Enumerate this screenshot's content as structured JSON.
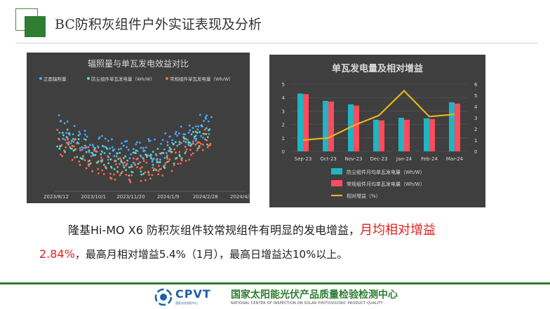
{
  "header": {
    "title": "BC防积灰组件户外实证表现及分析"
  },
  "chart_data": [
    {
      "type": "scatter",
      "title": "辐照量与单瓦发电效益对比",
      "legend": [
        "正面辐照量",
        "防尘组件单瓦发电量（Wh/W）",
        "常规组件单瓦发电量（Wh/W）"
      ],
      "legend_placement": "top",
      "x_tick_labels": [
        "2023/8/12",
        "2023/10/1",
        "2023/11/20",
        "2024/1/9",
        "2024/2/28",
        "2024/4/18"
      ],
      "colors": [
        "#4aa8ff",
        "#5fd7c3",
        "#ff6a4a"
      ],
      "grid": false
    },
    {
      "type": "bar",
      "title": "单瓦发电量及相对增益",
      "categories": [
        "Sep-23",
        "Oct-23",
        "Nov-23",
        "Dec-23",
        "Jan-24",
        "Feb-24",
        "Mar-24"
      ],
      "series": [
        {
          "name": "防尘组件月均单瓦发电量（Wh/W）",
          "values": [
            4.3,
            3.75,
            3.5,
            2.35,
            2.5,
            2.45,
            3.65
          ],
          "color": "#1fb5c4"
        },
        {
          "name": "常规组件月均单瓦发电量（Wh/W）",
          "values": [
            4.25,
            3.7,
            3.4,
            2.3,
            2.35,
            2.4,
            3.55
          ],
          "color": "#ff4b5c"
        },
        {
          "name": "相对增益（%）",
          "values": [
            1.0,
            1.2,
            2.3,
            3.2,
            5.4,
            3.1,
            3.3
          ],
          "color": "#e8b21a",
          "axis": "right",
          "kind": "line"
        }
      ],
      "y_ticks_left": [
        "0",
        "1",
        "2",
        "3",
        "4",
        "5"
      ],
      "y_ticks_right": [
        "0",
        "1",
        "2",
        "3",
        "4",
        "5",
        "6"
      ],
      "ylim_left": [
        0,
        5
      ],
      "ylim_right": [
        0,
        6
      ],
      "legend_placement": "bottom"
    }
  ],
  "text": {
    "line1_main": "隆基Hi-MO X6 防积灰组件较常规组件有明显的发电增益，",
    "line1_red": "月均相对增益",
    "line2_red": "2.84%",
    "line2_main": "，最高月相对增益5.4%（1月），最高日增益达10%以上。"
  },
  "footer": {
    "logo_text": "CPVT",
    "logo_sub": "国家光伏质检中心",
    "org_cn": "国家太阳能光伏产品质量检验检测中心",
    "org_en": "NATIONAL CENTER OF INSPECTION ON SOLAR PHOTOVOLTAIC PRODUCT QUALITY"
  }
}
